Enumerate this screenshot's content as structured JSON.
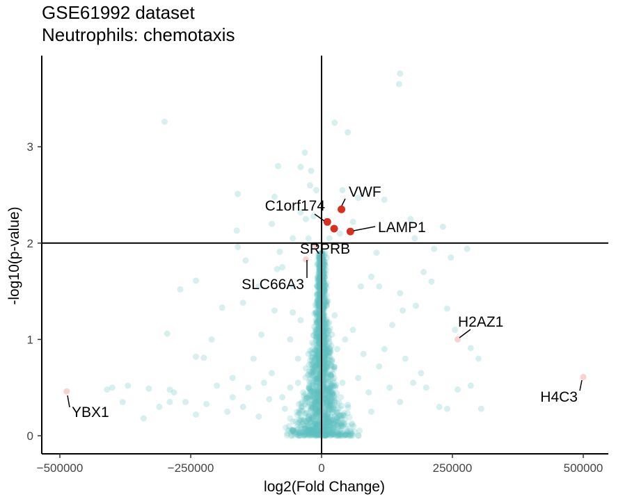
{
  "chart_data": {
    "type": "scatter",
    "title": "GSE61992 dataset",
    "subtitle": "Neutrophils: chemotaxis",
    "xlabel": "log2(Fold Change)",
    "ylabel": "-log10(p-value)",
    "xlim": [
      -500000,
      500000
    ],
    "ylim": [
      0,
      3.8
    ],
    "x_ticks": [
      -500000,
      -250000,
      0,
      250000,
      500000
    ],
    "x_tick_labels": [
      "−500000",
      "−250000",
      "0",
      "250000",
      "500000"
    ],
    "y_ticks": [
      0,
      1,
      2,
      3
    ],
    "y_tick_labels": [
      "0",
      "1",
      "2",
      "3"
    ],
    "thresholds": {
      "x": 0,
      "y": 2
    },
    "grid": false,
    "colors": {
      "background_points": "#5bc0c0",
      "significant": "#d7301f",
      "highlighted_faint": "#f4a6a6",
      "threshold_lines": "#000000",
      "axis": "#000000"
    },
    "background_points": [
      [
        150000,
        3.76
      ],
      [
        148000,
        3.65
      ],
      [
        -300000,
        3.26
      ],
      [
        25000,
        3.25
      ],
      [
        -32000,
        2.94
      ],
      [
        -40000,
        2.79
      ],
      [
        -83000,
        2.8
      ],
      [
        50000,
        3.15
      ],
      [
        -20000,
        2.75
      ],
      [
        -22000,
        2.6
      ],
      [
        -10000,
        2.55
      ],
      [
        40000,
        2.55
      ],
      [
        70000,
        2.47
      ],
      [
        120000,
        2.45
      ],
      [
        -160000,
        2.51
      ],
      [
        -162000,
        2.13
      ],
      [
        -160000,
        1.96
      ],
      [
        -90000,
        2.48
      ],
      [
        -95000,
        2.2
      ],
      [
        -40000,
        2.32
      ],
      [
        -30000,
        2.25
      ],
      [
        170000,
        2.25
      ],
      [
        232000,
        2.17
      ],
      [
        178000,
        2.05
      ],
      [
        278000,
        1.94
      ],
      [
        247000,
        1.85
      ],
      [
        215000,
        1.94
      ],
      [
        105000,
        1.9
      ],
      [
        -145000,
        1.82
      ],
      [
        -80000,
        1.91
      ],
      [
        -75000,
        1.75
      ],
      [
        -240000,
        1.61
      ],
      [
        -270000,
        1.52
      ],
      [
        -190000,
        1.33
      ],
      [
        -120000,
        1.55
      ],
      [
        -85000,
        1.73
      ],
      [
        -90000,
        1.3
      ],
      [
        -55000,
        1.55
      ],
      [
        -55000,
        1.28
      ],
      [
        -150000,
        1.38
      ],
      [
        75000,
        1.55
      ],
      [
        95000,
        1.65
      ],
      [
        110000,
        1.55
      ],
      [
        150000,
        1.48
      ],
      [
        155000,
        1.3
      ],
      [
        195000,
        1.7
      ],
      [
        210000,
        1.6
      ],
      [
        180000,
        1.35
      ],
      [
        240000,
        1.32
      ],
      [
        255000,
        1.1
      ],
      [
        -295000,
        1.06
      ],
      [
        -210000,
        1.0
      ],
      [
        285000,
        0.91
      ],
      [
        300000,
        0.8
      ],
      [
        -240000,
        0.82
      ],
      [
        -225000,
        0.81
      ],
      [
        -370000,
        0.52
      ],
      [
        -410000,
        0.48
      ],
      [
        -400000,
        0.5
      ],
      [
        -330000,
        0.49
      ],
      [
        -290000,
        0.48
      ],
      [
        -282000,
        0.45
      ],
      [
        -290000,
        0.35
      ],
      [
        -310000,
        0.3
      ],
      [
        -340000,
        0.18
      ],
      [
        -380000,
        0.35
      ],
      [
        -260000,
        0.35
      ],
      [
        -220000,
        0.33
      ],
      [
        -240000,
        0.22
      ],
      [
        -200000,
        0.52
      ],
      [
        -170000,
        0.4
      ],
      [
        -150000,
        0.3
      ],
      [
        -140000,
        0.5
      ],
      [
        -110000,
        0.55
      ],
      [
        -180000,
        0.25
      ],
      [
        -120000,
        0.2
      ],
      [
        -100000,
        0.38
      ],
      [
        -60000,
        0.5
      ],
      [
        -70000,
        0.28
      ],
      [
        -35000,
        0.45
      ],
      [
        -20000,
        0.3
      ],
      [
        -45000,
        0.55
      ],
      [
        -30000,
        0.7
      ],
      [
        -25000,
        0.85
      ],
      [
        -15000,
        0.95
      ],
      [
        -10000,
        1.1
      ],
      [
        -5000,
        1.2
      ],
      [
        -8000,
        0.6
      ],
      [
        -12000,
        0.35
      ],
      [
        -3000,
        0.15
      ],
      [
        3000,
        0.1
      ],
      [
        10000,
        0.35
      ],
      [
        15000,
        0.75
      ],
      [
        20000,
        1.05
      ],
      [
        25000,
        1.25
      ],
      [
        30000,
        0.9
      ],
      [
        40000,
        0.55
      ],
      [
        50000,
        0.32
      ],
      [
        70000,
        0.6
      ],
      [
        90000,
        0.45
      ],
      [
        110000,
        0.72
      ],
      [
        130000,
        0.5
      ],
      [
        150000,
        0.35
      ],
      [
        175000,
        0.55
      ],
      [
        200000,
        0.5
      ],
      [
        225000,
        0.3
      ],
      [
        240000,
        0.28
      ],
      [
        260000,
        0.48
      ],
      [
        305000,
        0.28
      ],
      [
        285000,
        0.52
      ],
      [
        -5000,
        1.75
      ],
      [
        0,
        1.9
      ],
      [
        5000,
        1.65
      ],
      [
        10000,
        1.85
      ],
      [
        -2000,
        1.45
      ],
      [
        2000,
        1.35
      ],
      [
        -8000,
        1.55
      ],
      [
        12000,
        1.4
      ],
      [
        -60000,
        1.0
      ],
      [
        60000,
        1.1
      ],
      [
        -45000,
        0.8
      ],
      [
        80000,
        0.85
      ],
      [
        -95000,
        0.65
      ],
      [
        120000,
        0.9
      ],
      [
        -130000,
        0.8
      ],
      [
        160000,
        0.8
      ],
      [
        -40000,
        1.2
      ],
      [
        45000,
        1.0
      ],
      [
        -75000,
        0.4
      ],
      [
        95000,
        0.25
      ],
      [
        135000,
        1.15
      ],
      [
        -115000,
        1.05
      ],
      [
        -170000,
        0.6
      ],
      [
        190000,
        0.65
      ],
      [
        -55000,
        2.05
      ],
      [
        60000,
        2.22
      ],
      [
        -15000,
        2.28
      ],
      [
        15000,
        2.05
      ],
      [
        -25000,
        2.05
      ],
      [
        35000,
        2.1
      ]
    ],
    "labeled_points": [
      {
        "label": "VWF",
        "x": 38000,
        "y": 2.35,
        "significant": true
      },
      {
        "label": "C1orf174",
        "x": 11000,
        "y": 2.22,
        "significant": true
      },
      {
        "label": "",
        "x": 24000,
        "y": 2.15,
        "significant": true
      },
      {
        "label": "LAMP1",
        "x": 55000,
        "y": 2.12,
        "significant": true
      },
      {
        "label": "SRPRB",
        "x": -12000,
        "y": 1.98,
        "significant": false
      },
      {
        "label": "SLC66A3",
        "x": -30000,
        "y": 1.83,
        "significant": false
      },
      {
        "label": "H2AZ1",
        "x": 260000,
        "y": 1.0,
        "significant": false
      },
      {
        "label": "H4C3",
        "x": 500000,
        "y": 0.61,
        "significant": false
      },
      {
        "label": "YBX1",
        "x": -487000,
        "y": 0.46,
        "significant": false
      }
    ]
  }
}
